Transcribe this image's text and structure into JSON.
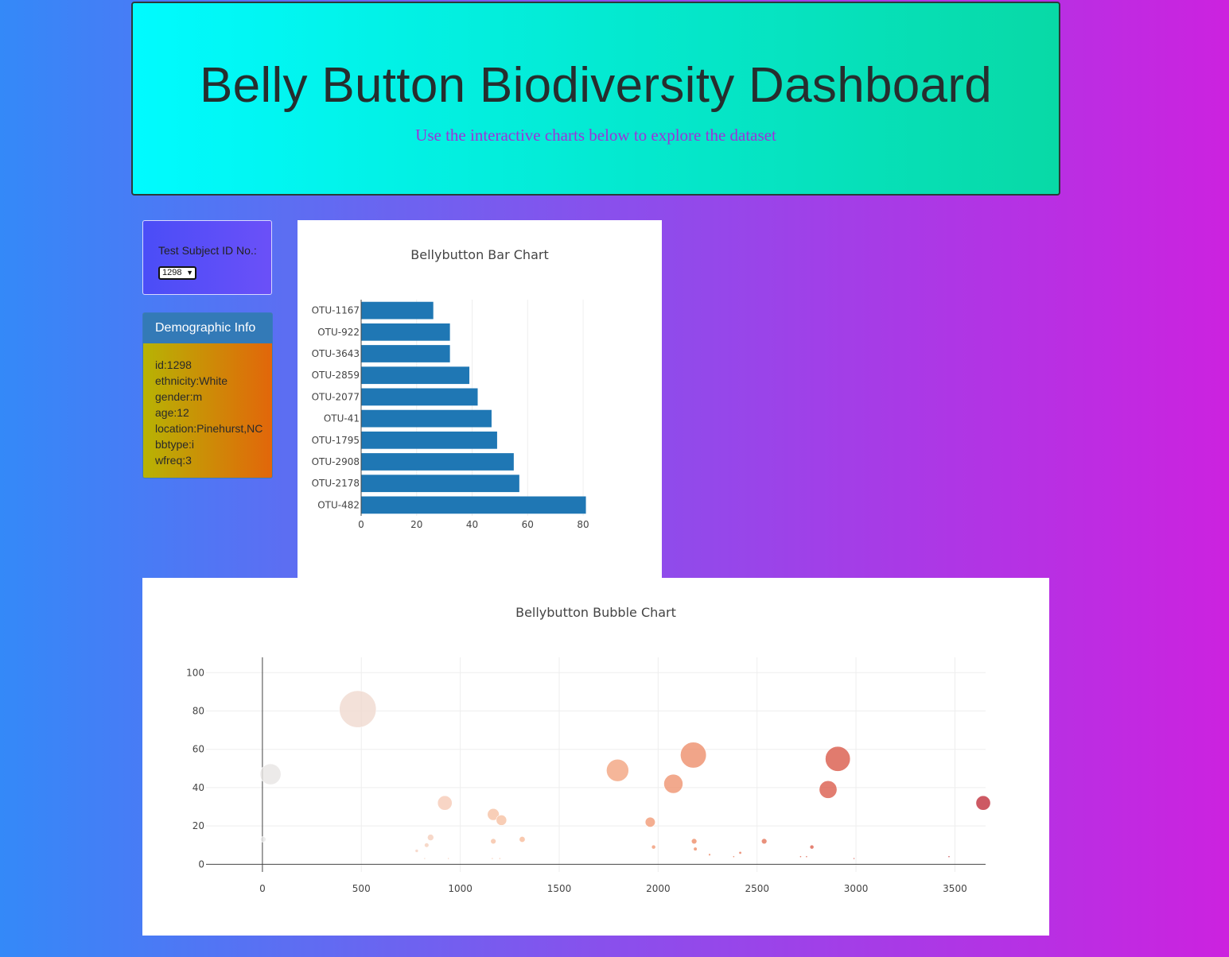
{
  "header": {
    "title": "Belly Button Biodiversity Dashboard",
    "subtitle": "Use the interactive charts below to explore the dataset"
  },
  "selector": {
    "label": "Test Subject ID No.:",
    "selected": "1298"
  },
  "demographic": {
    "title": "Demographic Info",
    "lines": [
      "id:1298",
      "ethnicity:White",
      "gender:m",
      "age:12",
      "location:Pinehurst,NC",
      "bbtype:i",
      "wfreq:3"
    ]
  },
  "chart_data": [
    {
      "type": "bar",
      "orientation": "horizontal",
      "title": "Bellybutton Bar Chart",
      "categories": [
        "OTU-1167",
        "OTU-922",
        "OTU-3643",
        "OTU-2859",
        "OTU-2077",
        "OTU-41",
        "OTU-1795",
        "OTU-2908",
        "OTU-2178",
        "OTU-482"
      ],
      "values": [
        26,
        32,
        32,
        39,
        42,
        47,
        49,
        55,
        57,
        81
      ],
      "xlim": [
        0,
        86
      ],
      "xticks": [
        0,
        20,
        40,
        60,
        80
      ],
      "grid": true,
      "color": "#1f77b4"
    },
    {
      "type": "scatter",
      "title": "Bellybutton Bubble Chart",
      "xlim": [
        -285,
        3655
      ],
      "ylim": [
        -4,
        108
      ],
      "xticks": [
        0,
        500,
        1000,
        1500,
        2000,
        2500,
        3000,
        3500
      ],
      "yticks": [
        0,
        20,
        40,
        60,
        80,
        100
      ],
      "grid": true,
      "colorscale": [
        "#e6e6e6",
        "#f5d3c3",
        "#f7b691",
        "#ee8e6a",
        "#d9594a",
        "#c0303c"
      ],
      "points": [
        {
          "x": 4,
          "y": 13,
          "size": 12
        },
        {
          "x": 41,
          "y": 47,
          "size": 46
        },
        {
          "x": 482,
          "y": 81,
          "size": 81
        },
        {
          "x": 922,
          "y": 32,
          "size": 32
        },
        {
          "x": 850,
          "y": 14,
          "size": 14
        },
        {
          "x": 830,
          "y": 10,
          "size": 10
        },
        {
          "x": 780,
          "y": 7,
          "size": 7
        },
        {
          "x": 820,
          "y": 3,
          "size": 3
        },
        {
          "x": 940,
          "y": 3,
          "size": 3
        },
        {
          "x": 1167,
          "y": 26,
          "size": 26
        },
        {
          "x": 1208,
          "y": 23,
          "size": 23
        },
        {
          "x": 1167,
          "y": 12,
          "size": 12
        },
        {
          "x": 1162,
          "y": 3,
          "size": 3
        },
        {
          "x": 1200,
          "y": 3,
          "size": 3
        },
        {
          "x": 1313,
          "y": 13,
          "size": 13
        },
        {
          "x": 1795,
          "y": 49,
          "size": 49
        },
        {
          "x": 1960,
          "y": 22,
          "size": 22
        },
        {
          "x": 1977,
          "y": 9,
          "size": 9
        },
        {
          "x": 2077,
          "y": 42,
          "size": 42
        },
        {
          "x": 2178,
          "y": 57,
          "size": 57
        },
        {
          "x": 2182,
          "y": 12,
          "size": 12
        },
        {
          "x": 2188,
          "y": 8,
          "size": 8
        },
        {
          "x": 2260,
          "y": 5,
          "size": 5
        },
        {
          "x": 2382,
          "y": 4,
          "size": 4
        },
        {
          "x": 2415,
          "y": 6,
          "size": 6
        },
        {
          "x": 2536,
          "y": 12,
          "size": 12
        },
        {
          "x": 2720,
          "y": 4,
          "size": 4
        },
        {
          "x": 2750,
          "y": 4,
          "size": 4
        },
        {
          "x": 2777,
          "y": 9,
          "size": 9
        },
        {
          "x": 2859,
          "y": 39,
          "size": 39
        },
        {
          "x": 2908,
          "y": 55,
          "size": 55
        },
        {
          "x": 3643,
          "y": 32,
          "size": 32
        },
        {
          "x": 3470,
          "y": 4,
          "size": 4
        },
        {
          "x": 2990,
          "y": 3,
          "size": 3
        }
      ]
    }
  ]
}
